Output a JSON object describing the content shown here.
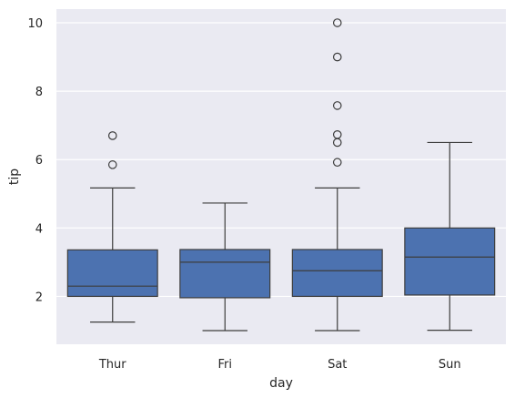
{
  "chart_data": {
    "type": "box",
    "title": "",
    "xlabel": "day",
    "ylabel": "tip",
    "categories": [
      "Thur",
      "Fri",
      "Sat",
      "Sun"
    ],
    "yticks": [
      2,
      4,
      6,
      8,
      10
    ],
    "ylim": [
      0.6,
      10.4
    ],
    "grid": true,
    "background": "#eaeaf2",
    "box_color": "#4c72b0",
    "line_color": "#3d3d3d",
    "boxes": [
      {
        "category": "Thur",
        "whisker_low": 1.25,
        "q1": 2.0,
        "median": 2.3,
        "q3": 3.36,
        "whisker_high": 5.17,
        "outliers": [
          5.85,
          6.7
        ]
      },
      {
        "category": "Fri",
        "whisker_low": 1.0,
        "q1": 1.96,
        "median": 3.0,
        "q3": 3.37,
        "whisker_high": 4.73,
        "outliers": []
      },
      {
        "category": "Sat",
        "whisker_low": 1.0,
        "q1": 2.0,
        "median": 2.75,
        "q3": 3.37,
        "whisker_high": 5.17,
        "outliers": [
          5.92,
          6.5,
          6.73,
          7.58,
          9.0,
          10.0
        ]
      },
      {
        "category": "Sun",
        "whisker_low": 1.01,
        "q1": 2.04,
        "median": 3.15,
        "q3": 4.0,
        "whisker_high": 6.5,
        "outliers": []
      }
    ]
  }
}
